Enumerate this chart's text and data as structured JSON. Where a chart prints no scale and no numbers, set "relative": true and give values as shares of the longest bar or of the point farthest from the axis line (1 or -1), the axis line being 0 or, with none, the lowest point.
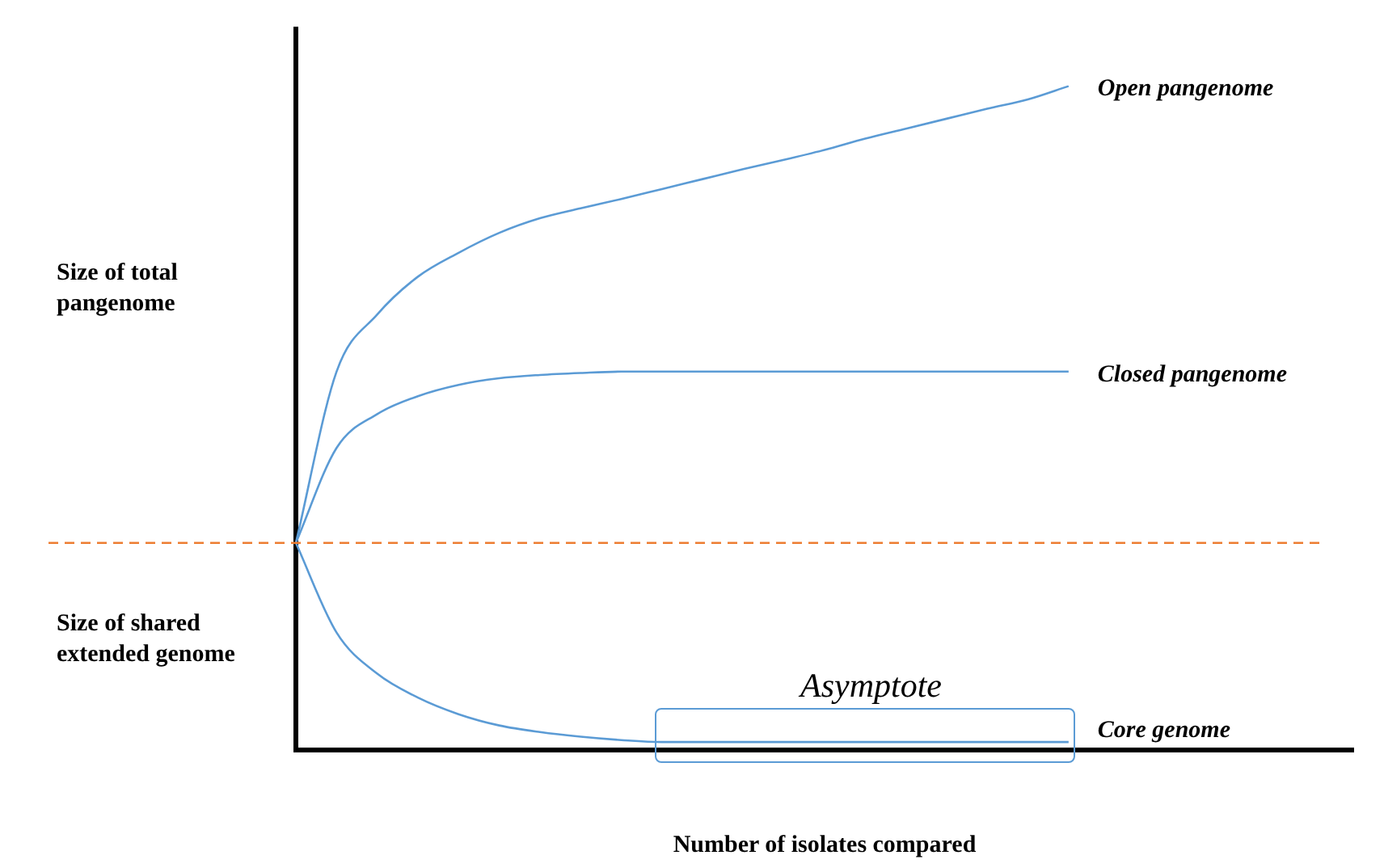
{
  "chart_data": {
    "type": "line",
    "relative": true,
    "xlabel": "Number of isolates compared",
    "categories": [
      null,
      null,
      null,
      null,
      null,
      null,
      null,
      null,
      null,
      null,
      null,
      null,
      null,
      null,
      null,
      null,
      null,
      null,
      null,
      null,
      null,
      null,
      null,
      null,
      null,
      null,
      null
    ],
    "series": [
      {
        "name": "Open pangenome",
        "color": "#5b9bd5",
        "values": [
          0.312,
          0.57,
          0.656,
          0.713,
          0.749,
          0.779,
          0.801,
          0.816,
          0.83,
          0.845,
          0.86,
          0.875,
          0.889,
          0.904,
          0.921,
          0.936,
          0.951,
          0.966,
          0.98,
          1,
          null,
          null,
          null,
          null,
          null,
          null,
          null
        ]
      },
      {
        "name": "Closed pangenome",
        "color": "#5b9bd5",
        "values": [
          0.312,
          0.455,
          0.506,
          0.533,
          0.55,
          0.56,
          0.565,
          0.568,
          0.57,
          0.57,
          0.57,
          0.57,
          0.57,
          0.57,
          0.57,
          0.57,
          0.57,
          0.57,
          0.57,
          0.57,
          null,
          null,
          null,
          null,
          null,
          null,
          null
        ]
      },
      {
        "name": "Core genome",
        "color": "#5b9bd5",
        "values": [
          0.312,
          0.177,
          0.115,
          0.079,
          0.054,
          0.037,
          0.027,
          0.02,
          0.015,
          0.012,
          0.012,
          0.012,
          0.012,
          0.012,
          0.012,
          0.012,
          0.012,
          0.012,
          0.012,
          0.012,
          null,
          null,
          null,
          null,
          null,
          null,
          null
        ]
      }
    ],
    "ref_lines": [
      {
        "axis": "y",
        "value": 0.312,
        "color": "#ed7d31",
        "line_style": "dashed"
      }
    ],
    "annotations": [
      "Size of total pangenome",
      "Size of shared extended genome",
      "Asymptote"
    ],
    "marker": "none",
    "line_style": "solid",
    "grid": false,
    "legend": false
  }
}
